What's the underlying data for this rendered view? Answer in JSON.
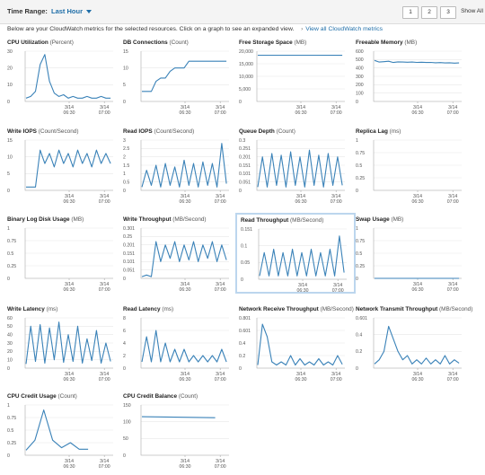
{
  "toolbar": {
    "time_range_label": "Time Range:",
    "time_range_value": "Last Hour",
    "pages": [
      "1",
      "2",
      "3"
    ],
    "show_all": "Show All"
  },
  "description": {
    "text": "Below are your CloudWatch metrics for the selected resources. Click on a graph to see an expanded view.",
    "link": "View all CloudWatch metrics"
  },
  "colors": {
    "line": "#3a82b8",
    "grid": "#e8e8e8",
    "axis": "#aaaaaa",
    "highlight": "#bcd6ee"
  },
  "panels": [
    {
      "title": "CPU Utilization",
      "unit": "(Percent)",
      "yticks": [
        "30",
        "20",
        "10",
        "0"
      ]
    },
    {
      "title": "DB Connections",
      "unit": "(Count)",
      "yticks": [
        "15",
        "10",
        "5",
        "0"
      ]
    },
    {
      "title": "Free Storage Space",
      "unit": "(MB)",
      "yticks": [
        "20,000",
        "15,000",
        "10,000",
        "5,000",
        "0"
      ]
    },
    {
      "title": "Freeable Memory",
      "unit": "(MB)",
      "yticks": [
        "600",
        "500",
        "400",
        "300",
        "200",
        "100",
        "0"
      ]
    },
    {
      "title": "Write IOPS",
      "unit": "(Count/Second)",
      "yticks": [
        "15",
        "10",
        "5",
        "0"
      ]
    },
    {
      "title": "Read IOPS",
      "unit": "(Count/Second)",
      "yticks": [
        "3",
        "2.5",
        "2",
        "1.5",
        "1",
        "0.5",
        "0"
      ]
    },
    {
      "title": "Queue Depth",
      "unit": "(Count)",
      "yticks": [
        "0.3",
        "0.251",
        "0.201",
        "0.151",
        "0.101",
        "0.051",
        "0"
      ]
    },
    {
      "title": "Replica Lag",
      "unit": "(ms)",
      "yticks": [
        "1",
        "0.75",
        "0.5",
        "0.25",
        "0"
      ]
    },
    {
      "title": "Binary Log Disk Usage",
      "unit": "(MB)",
      "yticks": [
        "1",
        "0.75",
        "0.5",
        "0.25",
        "0"
      ]
    },
    {
      "title": "Write Throughput",
      "unit": "(MB/Second)",
      "yticks": [
        "0.301",
        "0.25",
        "0.201",
        "0.151",
        "0.101",
        "0.051",
        "0"
      ]
    },
    {
      "title": "Read Throughput",
      "unit": "(MB/Second)",
      "yticks": [
        "0.151",
        "0.1",
        "0.05",
        "0"
      ]
    },
    {
      "title": "Swap Usage",
      "unit": "(MB)",
      "yticks": [
        "1",
        "0.75",
        "0.5",
        "0.25",
        "0"
      ]
    },
    {
      "title": "Write Latency",
      "unit": "(ms)",
      "yticks": [
        "60",
        "50",
        "40",
        "30",
        "20",
        "10",
        "0"
      ]
    },
    {
      "title": "Read Latency",
      "unit": "(ms)",
      "yticks": [
        "8",
        "6",
        "4",
        "2",
        "0"
      ]
    },
    {
      "title": "Network Receive Throughput",
      "unit": "(MB/Second)",
      "yticks": [
        "0.801",
        "0.601",
        "0.4",
        "0.2",
        "0"
      ]
    },
    {
      "title": "Network Transmit Throughput",
      "unit": "(MB/Second)",
      "yticks": [
        "0.601",
        "0.4",
        "0.2",
        "0"
      ]
    },
    {
      "title": "CPU Credit Usage",
      "unit": "(Count)",
      "yticks": [
        "1",
        "0.75",
        "0.5",
        "0.25",
        "0"
      ]
    },
    {
      "title": "CPU Credit Balance",
      "unit": "(Count)",
      "yticks": [
        "150",
        "100",
        "50",
        "0"
      ]
    }
  ],
  "xticks": [
    {
      "date": "3/14",
      "time": "06:30"
    },
    {
      "date": "3/14",
      "time": "07:00"
    }
  ],
  "chart_data": [
    {
      "type": "line",
      "title": "CPU Utilization (Percent)",
      "ylim": [
        0,
        30
      ],
      "x": [
        "06:12",
        "06:15",
        "06:18",
        "06:21",
        "06:24",
        "06:27",
        "06:30",
        "06:33",
        "06:36",
        "06:39",
        "06:42",
        "06:45",
        "06:48",
        "06:51",
        "06:54",
        "06:57",
        "07:00",
        "07:03",
        "07:06"
      ],
      "values": [
        2,
        3,
        6,
        22,
        28,
        12,
        5,
        3,
        4,
        2,
        3,
        2,
        2,
        3,
        2,
        2,
        3,
        2,
        2
      ]
    },
    {
      "type": "line",
      "title": "DB Connections (Count)",
      "ylim": [
        0,
        15
      ],
      "x": [
        "06:12",
        "06:15",
        "06:18",
        "06:21",
        "06:24",
        "06:27",
        "06:30",
        "06:33",
        "06:36",
        "06:39",
        "06:42",
        "06:45",
        "06:48",
        "06:51",
        "06:54",
        "06:57",
        "07:00",
        "07:03",
        "07:06"
      ],
      "values": [
        3,
        3,
        3,
        6,
        7,
        7,
        9,
        10,
        10,
        10,
        12,
        12,
        12,
        12,
        12,
        12,
        12,
        12,
        12
      ]
    },
    {
      "type": "line",
      "title": "Free Storage Space (MB)",
      "ylim": [
        0,
        20000
      ],
      "x": [
        "06:12",
        "06:30",
        "06:48",
        "07:06"
      ],
      "values": [
        18400,
        18390,
        18380,
        18370
      ]
    },
    {
      "type": "line",
      "title": "Freeable Memory (MB)",
      "ylim": [
        0,
        600
      ],
      "x": [
        "06:12",
        "06:15",
        "06:18",
        "06:21",
        "06:24",
        "06:27",
        "06:30",
        "06:33",
        "06:36",
        "06:39",
        "06:42",
        "06:45",
        "06:48",
        "06:51",
        "06:54",
        "06:57",
        "07:00",
        "07:03",
        "07:06"
      ],
      "values": [
        490,
        470,
        475,
        480,
        465,
        472,
        470,
        468,
        470,
        466,
        468,
        465,
        466,
        462,
        464,
        460,
        462,
        458,
        460
      ]
    },
    {
      "type": "line",
      "title": "Write IOPS (Count/Second)",
      "ylim": [
        0,
        15
      ],
      "x": [
        "06:12",
        "06:15",
        "06:18",
        "06:21",
        "06:24",
        "06:27",
        "06:30",
        "06:33",
        "06:36",
        "06:39",
        "06:42",
        "06:45",
        "06:48",
        "06:51",
        "06:54",
        "06:57",
        "07:00",
        "07:03",
        "07:06"
      ],
      "values": [
        1,
        1,
        1,
        12,
        8,
        11,
        7,
        12,
        8,
        11,
        7,
        12,
        8,
        11,
        7,
        12,
        8,
        11,
        8
      ]
    },
    {
      "type": "line",
      "title": "Read IOPS (Count/Second)",
      "ylim": [
        0,
        3
      ],
      "x": [
        "06:12",
        "06:15",
        "06:18",
        "06:21",
        "06:24",
        "06:27",
        "06:30",
        "06:33",
        "06:36",
        "06:39",
        "06:42",
        "06:45",
        "06:48",
        "06:51",
        "06:54",
        "06:57",
        "07:00",
        "07:03",
        "07:06"
      ],
      "values": [
        0.2,
        1.2,
        0.3,
        1.5,
        0.2,
        1.6,
        0.3,
        1.4,
        0.2,
        1.8,
        0.3,
        1.6,
        0.2,
        1.7,
        0.3,
        1.6,
        0.2,
        2.8,
        0.4
      ]
    },
    {
      "type": "line",
      "title": "Queue Depth (Count)",
      "ylim": [
        0,
        0.3
      ],
      "x": [
        "06:12",
        "06:15",
        "06:18",
        "06:21",
        "06:24",
        "06:27",
        "06:30",
        "06:33",
        "06:36",
        "06:39",
        "06:42",
        "06:45",
        "06:48",
        "06:51",
        "06:54",
        "06:57",
        "07:00",
        "07:03",
        "07:06"
      ],
      "values": [
        0.02,
        0.2,
        0.02,
        0.22,
        0.03,
        0.21,
        0.02,
        0.23,
        0.03,
        0.2,
        0.02,
        0.24,
        0.03,
        0.21,
        0.02,
        0.22,
        0.03,
        0.2,
        0.03
      ]
    },
    {
      "type": "line",
      "title": "Replica Lag (ms)",
      "ylim": [
        0,
        1
      ],
      "x": [],
      "values": []
    },
    {
      "type": "line",
      "title": "Binary Log Disk Usage (MB)",
      "ylim": [
        0,
        1
      ],
      "x": [],
      "values": []
    },
    {
      "type": "line",
      "title": "Write Throughput (MB/Second)",
      "ylim": [
        0,
        0.301
      ],
      "x": [
        "06:12",
        "06:15",
        "06:18",
        "06:21",
        "06:24",
        "06:27",
        "06:30",
        "06:33",
        "06:36",
        "06:39",
        "06:42",
        "06:45",
        "06:48",
        "06:51",
        "06:54",
        "06:57",
        "07:00",
        "07:03",
        "07:06"
      ],
      "values": [
        0.01,
        0.02,
        0.01,
        0.22,
        0.1,
        0.2,
        0.12,
        0.22,
        0.1,
        0.2,
        0.11,
        0.22,
        0.1,
        0.2,
        0.12,
        0.22,
        0.1,
        0.2,
        0.11
      ]
    },
    {
      "type": "line",
      "title": "Read Throughput (MB/Second)",
      "ylim": [
        0,
        0.151
      ],
      "x": [
        "06:12",
        "06:15",
        "06:18",
        "06:21",
        "06:24",
        "06:27",
        "06:30",
        "06:33",
        "06:36",
        "06:39",
        "06:42",
        "06:45",
        "06:48",
        "06:51",
        "06:54",
        "06:57",
        "07:00",
        "07:03",
        "07:06"
      ],
      "values": [
        0.01,
        0.08,
        0.01,
        0.09,
        0.01,
        0.08,
        0.01,
        0.09,
        0.01,
        0.08,
        0.01,
        0.09,
        0.01,
        0.08,
        0.01,
        0.09,
        0.01,
        0.13,
        0.02
      ]
    },
    {
      "type": "line",
      "title": "Swap Usage (MB)",
      "ylim": [
        0,
        1
      ],
      "x": [
        "06:12",
        "06:30",
        "06:48",
        "07:06"
      ],
      "values": [
        0,
        0,
        0,
        0
      ]
    },
    {
      "type": "line",
      "title": "Write Latency (ms)",
      "ylim": [
        0,
        60
      ],
      "x": [
        "06:12",
        "06:15",
        "06:18",
        "06:21",
        "06:24",
        "06:27",
        "06:30",
        "06:33",
        "06:36",
        "06:39",
        "06:42",
        "06:45",
        "06:48",
        "06:51",
        "06:54",
        "06:57",
        "07:00",
        "07:03",
        "07:06"
      ],
      "values": [
        5,
        50,
        8,
        52,
        6,
        48,
        10,
        55,
        7,
        40,
        8,
        50,
        6,
        35,
        9,
        45,
        6,
        30,
        8
      ]
    },
    {
      "type": "line",
      "title": "Read Latency (ms)",
      "ylim": [
        0,
        8
      ],
      "x": [
        "06:12",
        "06:15",
        "06:18",
        "06:21",
        "06:24",
        "06:27",
        "06:30",
        "06:33",
        "06:36",
        "06:39",
        "06:42",
        "06:45",
        "06:48",
        "06:51",
        "06:54",
        "06:57",
        "07:00",
        "07:03",
        "07:06"
      ],
      "values": [
        1,
        5,
        1,
        6,
        1,
        4,
        1,
        3,
        1,
        3,
        1,
        2,
        1,
        2,
        1,
        2,
        1,
        3,
        1
      ]
    },
    {
      "type": "line",
      "title": "Network Receive Throughput (MB/Second)",
      "ylim": [
        0,
        0.801
      ],
      "x": [
        "06:12",
        "06:15",
        "06:18",
        "06:21",
        "06:24",
        "06:27",
        "06:30",
        "06:33",
        "06:36",
        "06:39",
        "06:42",
        "06:45",
        "06:48",
        "06:51",
        "06:54",
        "06:57",
        "07:00",
        "07:03",
        "07:06"
      ],
      "values": [
        0.05,
        0.7,
        0.5,
        0.1,
        0.05,
        0.1,
        0.05,
        0.2,
        0.05,
        0.15,
        0.05,
        0.1,
        0.05,
        0.15,
        0.05,
        0.1,
        0.05,
        0.2,
        0.06
      ]
    },
    {
      "type": "line",
      "title": "Network Transmit Throughput (MB/Second)",
      "ylim": [
        0,
        0.601
      ],
      "x": [
        "06:12",
        "06:15",
        "06:18",
        "06:21",
        "06:24",
        "06:27",
        "06:30",
        "06:33",
        "06:36",
        "06:39",
        "06:42",
        "06:45",
        "06:48",
        "06:51",
        "06:54",
        "06:57",
        "07:00",
        "07:03",
        "07:06"
      ],
      "values": [
        0.05,
        0.1,
        0.2,
        0.5,
        0.35,
        0.2,
        0.1,
        0.15,
        0.05,
        0.1,
        0.05,
        0.12,
        0.05,
        0.1,
        0.05,
        0.15,
        0.05,
        0.1,
        0.06
      ]
    },
    {
      "type": "line",
      "title": "CPU Credit Usage (Count)",
      "ylim": [
        0,
        1
      ],
      "x": [
        "06:12",
        "06:18",
        "06:24",
        "06:30",
        "06:36",
        "06:42",
        "06:48",
        "06:54"
      ],
      "values": [
        0.1,
        0.3,
        0.9,
        0.3,
        0.15,
        0.25,
        0.12,
        0.12
      ]
    },
    {
      "type": "line",
      "title": "CPU Credit Balance (Count)",
      "ylim": [
        0,
        150
      ],
      "x": [
        "06:12",
        "06:30",
        "06:48",
        "07:00"
      ],
      "values": [
        115,
        114,
        113,
        112
      ]
    }
  ]
}
